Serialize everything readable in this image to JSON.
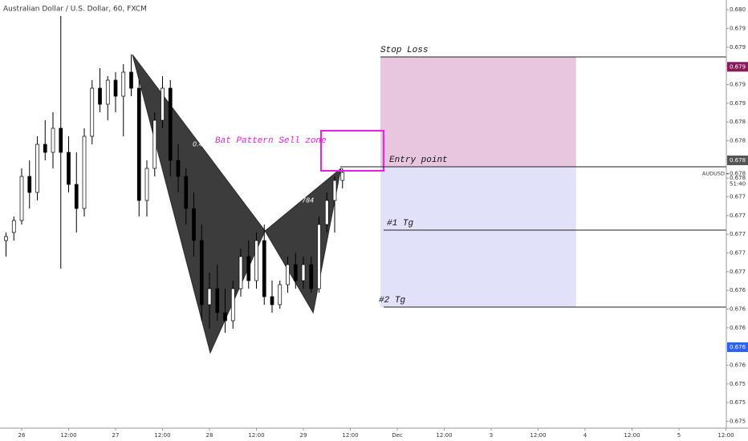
{
  "chart_data": {
    "type": "candlestick",
    "title": "Australian Dollar / U.S. Dollar, 60, FXCM",
    "xlim": [
      -5.54,
      180.1
    ],
    "ylim": [
      0.67533,
      0.68019
    ],
    "xticks": [
      {
        "value": 0,
        "label": "26"
      },
      {
        "value": 12,
        "label": "12:00"
      },
      {
        "value": 24,
        "label": "27"
      },
      {
        "value": 36,
        "label": "12:00"
      },
      {
        "value": 48,
        "label": "28"
      },
      {
        "value": 60,
        "label": "12:00"
      },
      {
        "value": 72,
        "label": "29"
      },
      {
        "value": 84,
        "label": "12:00"
      },
      {
        "value": 96,
        "label": "Dec"
      },
      {
        "value": 108,
        "label": "12:00"
      },
      {
        "value": 120,
        "label": "3"
      },
      {
        "value": 132,
        "label": "12:00"
      },
      {
        "value": 144,
        "label": "4"
      },
      {
        "value": 156,
        "label": "12:00"
      },
      {
        "value": 168,
        "label": "5"
      },
      {
        "value": 180,
        "label": "12:00"
      }
    ],
    "yticks": [
      {
        "value": 0.68008,
        "label": "0.680"
      },
      {
        "value": 0.67987,
        "label": "0.679"
      },
      {
        "value": 0.67966,
        "label": "0.679"
      },
      {
        "value": 0.67945,
        "label": "0.679"
      },
      {
        "value": 0.67924,
        "label": "0.679"
      },
      {
        "value": 0.67903,
        "label": "0.679"
      },
      {
        "value": 0.67882,
        "label": "0.678"
      },
      {
        "value": 0.67861,
        "label": "0.678"
      },
      {
        "value": 0.6784,
        "label": "0.678"
      },
      {
        "value": 0.67819,
        "label": "0.678"
      },
      {
        "value": 0.67798,
        "label": "0.677"
      },
      {
        "value": 0.67777,
        "label": "0.677"
      },
      {
        "value": 0.67756,
        "label": "0.677"
      },
      {
        "value": 0.67735,
        "label": "0.677"
      },
      {
        "value": 0.67714,
        "label": "0.677"
      },
      {
        "value": 0.67693,
        "label": "0.676"
      },
      {
        "value": 0.67672,
        "label": "0.676"
      },
      {
        "value": 0.67651,
        "label": "0.676"
      },
      {
        "value": 0.6763,
        "label": "0.676"
      },
      {
        "value": 0.67609,
        "label": "0.676"
      },
      {
        "value": 0.67588,
        "label": "0.675"
      },
      {
        "value": 0.67567,
        "label": "0.675"
      },
      {
        "value": 0.67546,
        "label": "0.675"
      }
    ],
    "up_color": "#ffffff",
    "down_color": "#000000",
    "x": [
      -4,
      -2,
      0,
      2,
      4,
      6,
      8,
      10,
      12,
      14,
      16,
      18,
      20,
      22,
      24,
      26,
      28,
      30,
      32,
      34,
      36,
      38,
      40,
      42,
      44,
      46,
      48,
      50,
      52,
      54,
      56,
      58,
      60,
      62,
      64,
      66,
      68,
      70,
      72,
      74,
      76,
      78,
      80,
      82
    ],
    "open": [
      0.67749,
      0.67758,
      0.677715,
      0.67821,
      0.67803,
      0.67857,
      0.67848,
      0.67875,
      0.67848,
      0.67812,
      0.67785,
      0.67866,
      0.6792,
      0.67902,
      0.67929,
      0.67911,
      0.67938,
      0.6792,
      0.67794,
      0.6783,
      0.67884,
      0.6792,
      0.67839,
      0.67821,
      0.67785,
      0.67749,
      0.67677,
      0.67695,
      0.67668,
      0.67659,
      0.67695,
      0.67731,
      0.67704,
      0.67749,
      0.67686,
      0.67677,
      0.676995,
      0.67722,
      0.67704,
      0.67722,
      0.67695,
      0.67767,
      0.67794,
      0.678165
    ],
    "high": [
      0.67758,
      0.67776,
      0.6783,
      0.67839,
      0.67866,
      0.67884,
      0.67893,
      0.68001,
      0.67866,
      0.67848,
      0.67875,
      0.67929,
      0.679425,
      0.679335,
      0.67938,
      0.67947,
      0.679578,
      0.67929,
      0.67839,
      0.67893,
      0.679335,
      0.67929,
      0.67857,
      0.6783,
      0.67803,
      0.67767,
      0.67713,
      0.67722,
      0.67695,
      0.67704,
      0.6774,
      0.67749,
      0.67758,
      0.67767,
      0.67704,
      0.67704,
      0.67731,
      0.677355,
      0.67731,
      0.67731,
      0.67776,
      0.67803,
      0.67821,
      0.6783
    ],
    "low": [
      0.67731,
      0.67749,
      0.67767,
      0.67785,
      0.67794,
      0.67839,
      0.6783,
      0.677175,
      0.67803,
      0.67758,
      0.67776,
      0.67857,
      0.67893,
      0.67884,
      0.67893,
      0.67866,
      0.67911,
      0.67776,
      0.67776,
      0.67821,
      0.67875,
      0.67821,
      0.67803,
      0.67767,
      0.67731,
      0.67659,
      0.6765,
      0.67659,
      0.676455,
      0.6765,
      0.67686,
      0.67695,
      0.67695,
      0.67677,
      0.67668,
      0.676725,
      0.676905,
      0.67695,
      0.67695,
      0.676905,
      0.676905,
      0.67758,
      0.67758,
      0.678075
    ],
    "close": [
      0.677535,
      0.677715,
      0.67821,
      0.67803,
      0.67857,
      0.67848,
      0.67875,
      0.67848,
      0.67812,
      0.67785,
      0.67866,
      0.6792,
      0.67902,
      0.67929,
      0.67911,
      0.67938,
      0.6792,
      0.67794,
      0.6783,
      0.67884,
      0.6792,
      0.67839,
      0.67821,
      0.67785,
      0.67749,
      0.67677,
      0.67695,
      0.67668,
      0.67659,
      0.67695,
      0.67731,
      0.67704,
      0.67749,
      0.67686,
      0.67677,
      0.676995,
      0.67722,
      0.67704,
      0.67722,
      0.67695,
      0.67767,
      0.67794,
      0.678165,
      0.678255
    ],
    "pattern": {
      "x": [
        28.3,
        48.2,
        62.2,
        74.5,
        81.6
      ],
      "y": [
        0.679578,
        0.67623,
        0.677598,
        0.67668,
        0.6783
      ],
      "color": "#2b2b2b",
      "labels": [
        "0.4",
        "784"
      ]
    },
    "sell_zone": {
      "label": "Bat Pattern Sell zone",
      "x": [
        76.5,
        92.5
      ],
      "y": [
        0.678723,
        0.678273
      ],
      "color": "#e91ee0"
    },
    "zones": [
      {
        "x": [
          91.7,
          141.7
        ],
        "y": [
          0.679551,
          0.678318
        ],
        "color": "#e9c6e0"
      },
      {
        "x": [
          91.7,
          141.7
        ],
        "y": [
          0.678318,
          0.676743
        ],
        "color": "#e1e1fa"
      }
    ],
    "levels": [
      {
        "name": "Stop Loss",
        "value": 0.679551,
        "x": 91.7
      },
      {
        "name": "Entry point",
        "value": 0.678318,
        "x": 81.4
      },
      {
        "name": "#1 Tg",
        "value": 0.677607,
        "x": 92.5
      },
      {
        "name": "#2 Tg",
        "value": 0.676743,
        "x": 92.5
      }
    ],
    "price_labels": [
      {
        "value": 0.67944,
        "label": "0.679",
        "color": "#8b1a5c"
      },
      {
        "value": 0.67839,
        "label": "0.678",
        "color": "#555555"
      },
      {
        "value": 0.676293,
        "label": "0.676",
        "color": "#2962ff"
      }
    ],
    "last_price": {
      "symbol": "AUDUSD",
      "value": 0.67824,
      "label": "0.678",
      "countdown": "51:40"
    }
  }
}
